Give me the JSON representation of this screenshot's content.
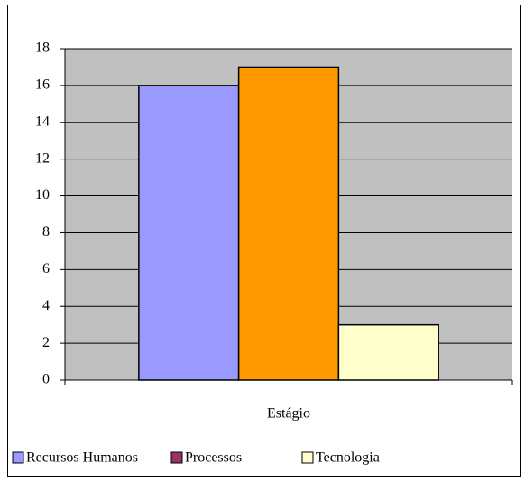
{
  "chart_data": {
    "type": "bar",
    "categories": [
      "Estágio"
    ],
    "series": [
      {
        "name": "Recursos Humanos",
        "color": "#9999ff",
        "values": [
          16
        ]
      },
      {
        "name": "Processos",
        "color": "#ff9900",
        "legend_color": "#993366",
        "values": [
          17
        ]
      },
      {
        "name": "Tecnologia",
        "color": "#ffffcc",
        "values": [
          3
        ]
      }
    ],
    "ylim": [
      0,
      18
    ],
    "yticks": [
      0,
      2,
      4,
      6,
      8,
      10,
      12,
      14,
      16,
      18
    ],
    "grid": true,
    "legend": "bottom",
    "plot_background": "#c0c0c0"
  }
}
